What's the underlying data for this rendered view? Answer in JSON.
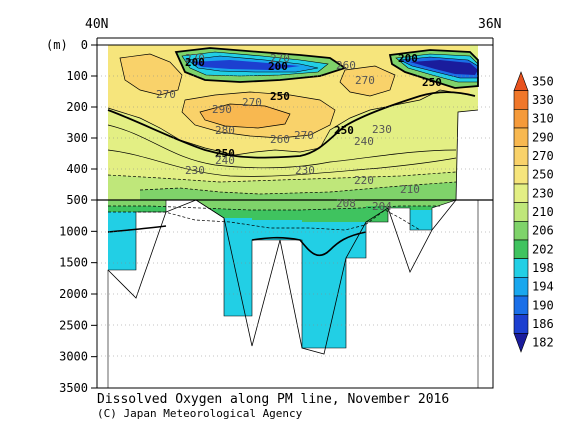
{
  "chart_data": {
    "type": "heatmap",
    "title": "Dissolved Oxygen along PM line, November 2016",
    "credit": "(C) Japan Meteorological Agency",
    "x_labels": {
      "left": "40N",
      "right": "36N"
    },
    "y_unit_label": "(m)",
    "y_ticks_upper": [
      0,
      100,
      200,
      300,
      400,
      500
    ],
    "y_ticks_lower": [
      1000,
      1500,
      2000,
      2500,
      3000,
      3500
    ],
    "ylim": [
      0,
      3500
    ],
    "upper_panel_range": [
      0,
      500
    ],
    "colorbar": {
      "levels": [
        350,
        330,
        310,
        290,
        270,
        250,
        230,
        210,
        206,
        202,
        198,
        194,
        190,
        186,
        182
      ],
      "colors": [
        "#e8521e",
        "#f0772a",
        "#f59a3a",
        "#f8b850",
        "#f9d26a",
        "#f6e57c",
        "#e3ef84",
        "#bfe77a",
        "#7fd36a",
        "#3fc35f",
        "#22cfe5",
        "#19a7ee",
        "#1a6fe8",
        "#1c3fd0",
        "#1a1c9c"
      ]
    },
    "contour_labels": [
      "270",
      "270",
      "270",
      "200",
      "200",
      "200",
      "260",
      "270",
      "250",
      "250",
      "290",
      "270",
      "280",
      "260",
      "270",
      "250",
      "230",
      "240",
      "250",
      "240",
      "230",
      "230",
      "220",
      "210",
      "208",
      "204"
    ],
    "contours_plotted": [
      182,
      186,
      190,
      194,
      198,
      202,
      206,
      210,
      220,
      230,
      240,
      250,
      260,
      270,
      280,
      290
    ]
  }
}
